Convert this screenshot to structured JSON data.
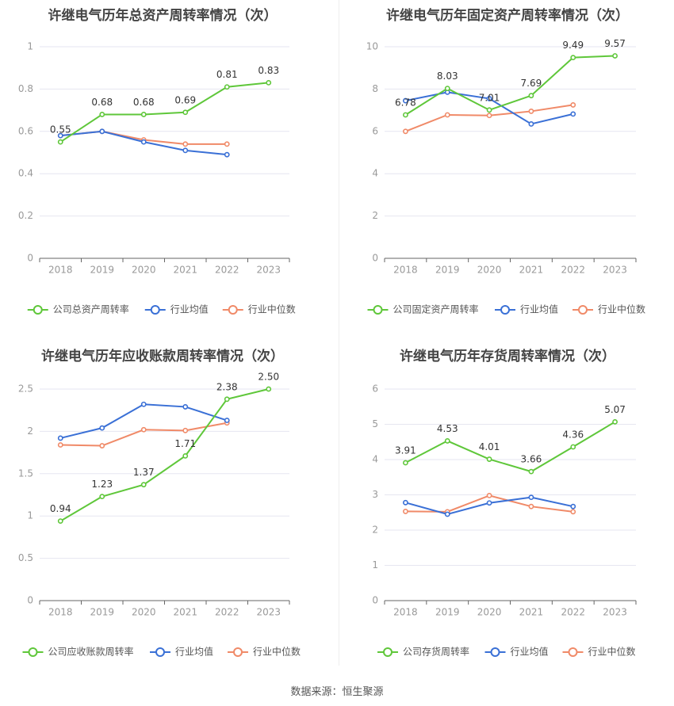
{
  "source": "数据来源：恒生聚源",
  "colors": {
    "company": "#5fc73a",
    "avg": "#3a70d6",
    "median": "#f08a68",
    "grid": "#e6e6f0",
    "axis": "#999999",
    "title": "#444444"
  },
  "chart_data": [
    {
      "type": "line",
      "title": "许继电气历年总资产周转率情况（次）",
      "categories": [
        "2018",
        "2019",
        "2020",
        "2021",
        "2022",
        "2023"
      ],
      "ylim": [
        0,
        1
      ],
      "yticks": [
        "0",
        "0.2",
        "0.4",
        "0.6",
        "0.8",
        "1"
      ],
      "grid": true,
      "legend": "bottom",
      "series": [
        {
          "name": "公司总资产周转率",
          "values": [
            0.55,
            0.68,
            0.68,
            0.69,
            0.81,
            0.83
          ],
          "labels": [
            "0.55",
            "0.68",
            "0.68",
            "0.69",
            "0.81",
            "0.83"
          ]
        },
        {
          "name": "行业均值",
          "values": [
            0.58,
            0.6,
            0.55,
            0.51,
            0.49,
            null
          ]
        },
        {
          "name": "行业中位数",
          "values": [
            0.58,
            0.6,
            0.56,
            0.54,
            0.54,
            null
          ]
        }
      ]
    },
    {
      "type": "line",
      "title": "许继电气历年固定资产周转率情况（次）",
      "categories": [
        "2018",
        "2019",
        "2020",
        "2021",
        "2022",
        "2023"
      ],
      "ylim": [
        0,
        10
      ],
      "yticks": [
        "0",
        "2",
        "4",
        "6",
        "8",
        "10"
      ],
      "grid": true,
      "legend": "bottom",
      "series": [
        {
          "name": "公司固定资产周转率",
          "values": [
            6.78,
            8.03,
            7.01,
            7.69,
            9.49,
            9.57
          ],
          "labels": [
            "6.78",
            "8.03",
            "7.01",
            "7.69",
            "9.49",
            "9.57"
          ]
        },
        {
          "name": "行业均值",
          "values": [
            7.45,
            7.85,
            7.55,
            6.35,
            6.82,
            null
          ]
        },
        {
          "name": "行业中位数",
          "values": [
            6.0,
            6.78,
            6.75,
            6.95,
            7.25,
            null
          ]
        }
      ]
    },
    {
      "type": "line",
      "title": "许继电气历年应收账款周转率情况（次）",
      "categories": [
        "2018",
        "2019",
        "2020",
        "2021",
        "2022",
        "2023"
      ],
      "ylim": [
        0,
        2.5
      ],
      "yticks": [
        "0",
        "0.5",
        "1",
        "1.5",
        "2",
        "2.5"
      ],
      "grid": true,
      "legend": "bottom",
      "series": [
        {
          "name": "公司应收账款周转率",
          "values": [
            0.94,
            1.23,
            1.37,
            1.71,
            2.38,
            2.5
          ],
          "labels": [
            "0.94",
            "1.23",
            "1.37",
            "1.71",
            "2.38",
            "2.50"
          ]
        },
        {
          "name": "行业均值",
          "values": [
            1.92,
            2.04,
            2.32,
            2.29,
            2.13,
            null
          ]
        },
        {
          "name": "行业中位数",
          "values": [
            1.84,
            1.83,
            2.02,
            2.01,
            2.1,
            null
          ]
        }
      ]
    },
    {
      "type": "line",
      "title": "许继电气历年存货周转率情况（次）",
      "categories": [
        "2018",
        "2019",
        "2020",
        "2021",
        "2022",
        "2023"
      ],
      "ylim": [
        0,
        6
      ],
      "yticks": [
        "0",
        "1",
        "2",
        "3",
        "4",
        "5",
        "6"
      ],
      "grid": true,
      "legend": "bottom",
      "series": [
        {
          "name": "公司存货周转率",
          "values": [
            3.91,
            4.53,
            4.01,
            3.66,
            4.36,
            5.07
          ],
          "labels": [
            "3.91",
            "4.53",
            "4.01",
            "3.66",
            "4.36",
            "5.07"
          ]
        },
        {
          "name": "行业均值",
          "values": [
            2.78,
            2.45,
            2.77,
            2.93,
            2.67,
            null
          ]
        },
        {
          "name": "行业中位数",
          "values": [
            2.53,
            2.52,
            2.98,
            2.67,
            2.52,
            null
          ]
        }
      ]
    }
  ]
}
